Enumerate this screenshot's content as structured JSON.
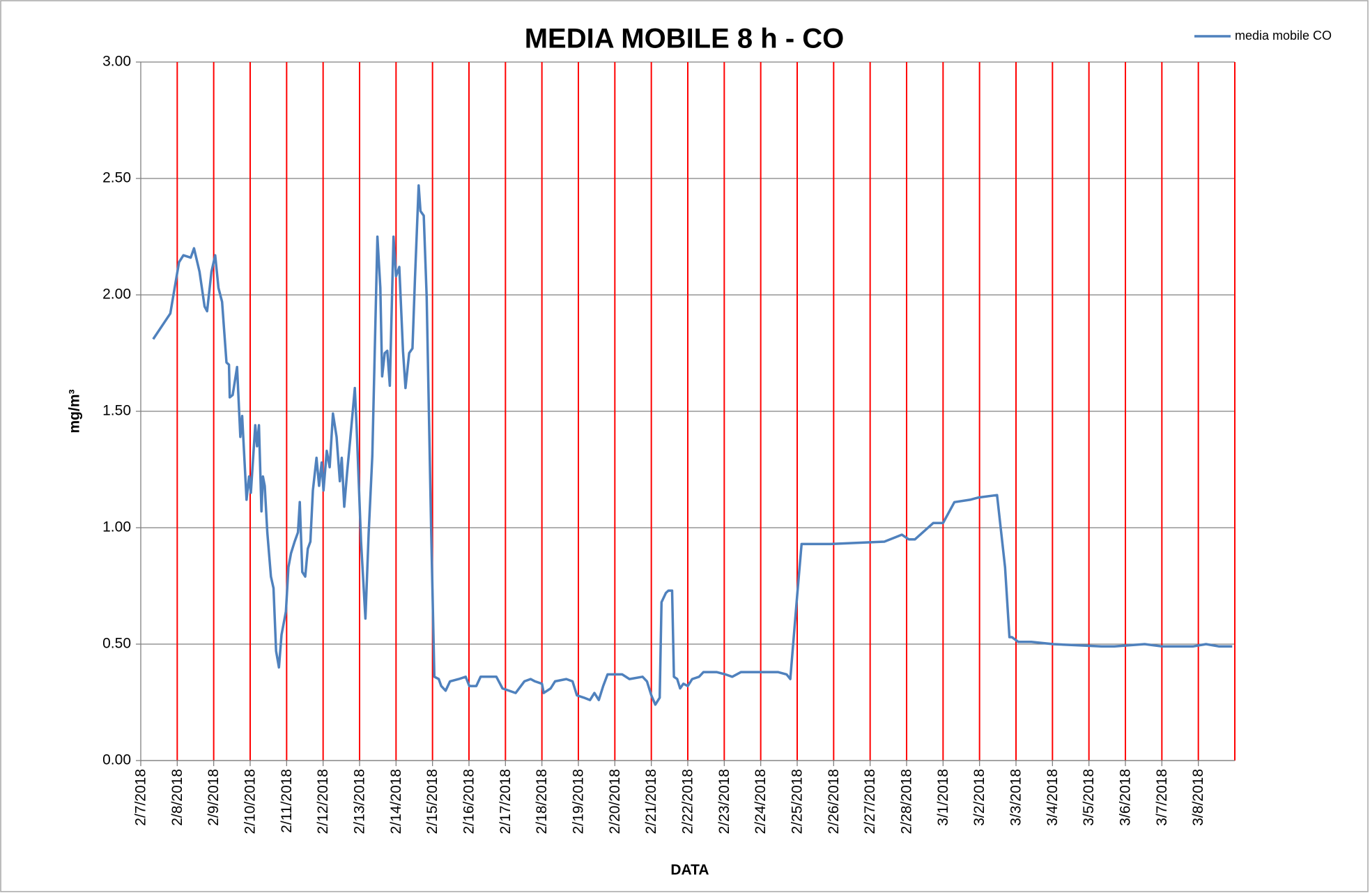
{
  "chart_data": {
    "type": "line",
    "title": "MEDIA MOBILE 8 h - CO",
    "xlabel": "DATA",
    "ylabel": "mg/m³",
    "legend": "top-right",
    "grid": true,
    "xgrid_color": "#ff0000",
    "ygrid_color": "#808080",
    "xlim": [
      0,
      30
    ],
    "xticks": [
      {
        "value": 0,
        "label": "2/7/2018"
      },
      {
        "value": 1,
        "label": "2/8/2018"
      },
      {
        "value": 2,
        "label": "2/9/2018"
      },
      {
        "value": 3,
        "label": "2/10/2018"
      },
      {
        "value": 4,
        "label": "2/11/2018"
      },
      {
        "value": 5,
        "label": "2/12/2018"
      },
      {
        "value": 6,
        "label": "2/13/2018"
      },
      {
        "value": 7,
        "label": "2/14/2018"
      },
      {
        "value": 8,
        "label": "2/15/2018"
      },
      {
        "value": 9,
        "label": "2/16/2018"
      },
      {
        "value": 10,
        "label": "2/17/2018"
      },
      {
        "value": 11,
        "label": "2/18/2018"
      },
      {
        "value": 12,
        "label": "2/19/2018"
      },
      {
        "value": 13,
        "label": "2/20/2018"
      },
      {
        "value": 14,
        "label": "2/21/2018"
      },
      {
        "value": 15,
        "label": "2/22/2018"
      },
      {
        "value": 16,
        "label": "2/23/2018"
      },
      {
        "value": 17,
        "label": "2/24/2018"
      },
      {
        "value": 18,
        "label": "2/25/2018"
      },
      {
        "value": 19,
        "label": "2/26/2018"
      },
      {
        "value": 20,
        "label": "2/27/2018"
      },
      {
        "value": 21,
        "label": "2/28/2018"
      },
      {
        "value": 22,
        "label": "3/1/2018"
      },
      {
        "value": 23,
        "label": "3/2/2018"
      },
      {
        "value": 24,
        "label": "3/3/2018"
      },
      {
        "value": 25,
        "label": "3/4/2018"
      },
      {
        "value": 26,
        "label": "3/5/2018"
      },
      {
        "value": 27,
        "label": "3/6/2018"
      },
      {
        "value": 28,
        "label": "3/7/2018"
      },
      {
        "value": 29,
        "label": "3/8/2018"
      }
    ],
    "ylim": [
      0,
      3
    ],
    "yticks": [
      {
        "value": 0,
        "label": "0.00"
      },
      {
        "value": 0.5,
        "label": "0.50"
      },
      {
        "value": 1,
        "label": "1.00"
      },
      {
        "value": 1.5,
        "label": "1.50"
      },
      {
        "value": 2,
        "label": "2.00"
      },
      {
        "value": 2.5,
        "label": "2.50"
      },
      {
        "value": 3,
        "label": "3.00"
      }
    ],
    "x": [
      0.34,
      0.81,
      1.05,
      1.17,
      1.37,
      1.46,
      1.61,
      1.75,
      1.82,
      1.94,
      2.04,
      2.13,
      2.23,
      2.35,
      2.42,
      2.44,
      2.52,
      2.64,
      2.73,
      2.78,
      2.9,
      2.97,
      3.02,
      3.14,
      3.19,
      3.24,
      3.31,
      3.35,
      3.4,
      3.47,
      3.57,
      3.64,
      3.71,
      3.79,
      3.86,
      3.98,
      4.05,
      4.12,
      4.22,
      4.31,
      4.36,
      4.43,
      4.51,
      4.58,
      4.65,
      4.72,
      4.82,
      4.89,
      4.96,
      5.01,
      5.1,
      5.18,
      5.27,
      5.37,
      5.46,
      5.51,
      5.58,
      5.66,
      5.75,
      5.87,
      5.92,
      6.04,
      6.16,
      6.25,
      6.35,
      6.49,
      6.57,
      6.62,
      6.69,
      6.76,
      6.83,
      6.93,
      7.0,
      7.09,
      7.19,
      7.26,
      7.36,
      7.45,
      7.52,
      7.62,
      7.67,
      7.76,
      7.84,
      7.96,
      8.05,
      8.17,
      8.24,
      8.36,
      8.48,
      8.72,
      8.91,
      9.01,
      9.2,
      9.32,
      9.75,
      9.92,
      10.28,
      10.52,
      10.69,
      10.81,
      11.0,
      11.05,
      11.24,
      11.36,
      11.67,
      11.84,
      11.96,
      12.15,
      12.32,
      12.44,
      12.56,
      12.68,
      12.8,
      13.2,
      13.4,
      13.76,
      13.88,
      14.0,
      14.11,
      14.23,
      14.28,
      14.4,
      14.47,
      14.57,
      14.62,
      14.71,
      14.79,
      14.88,
      15.0,
      15.12,
      15.31,
      15.43,
      15.79,
      16.03,
      16.22,
      16.46,
      17.47,
      17.71,
      17.81,
      18.0,
      18.12,
      18.91,
      20.39,
      20.71,
      20.87,
      21.06,
      21.23,
      21.73,
      22.0,
      22.31,
      22.74,
      22.98,
      23.48,
      23.7,
      23.82,
      23.89,
      24.06,
      24.42,
      25.02,
      26.34,
      26.7,
      27.53,
      28.01,
      28.85,
      29.21,
      29.57,
      29.93
    ],
    "series": [
      {
        "name": "media mobile CO",
        "color": "#4f81bd",
        "values": [
          1.81,
          1.92,
          2.14,
          2.17,
          2.16,
          2.2,
          2.1,
          1.95,
          1.93,
          2.1,
          2.17,
          2.03,
          1.97,
          1.71,
          1.7,
          1.56,
          1.57,
          1.69,
          1.39,
          1.48,
          1.12,
          1.22,
          1.15,
          1.44,
          1.35,
          1.44,
          1.07,
          1.22,
          1.18,
          0.98,
          0.79,
          0.74,
          0.47,
          0.4,
          0.54,
          0.64,
          0.83,
          0.89,
          0.94,
          0.98,
          1.11,
          0.81,
          0.79,
          0.91,
          0.94,
          1.16,
          1.3,
          1.18,
          1.28,
          1.16,
          1.33,
          1.26,
          1.49,
          1.39,
          1.2,
          1.3,
          1.09,
          1.24,
          1.39,
          1.6,
          1.43,
          0.94,
          0.61,
          0.98,
          1.31,
          2.25,
          2.03,
          1.65,
          1.75,
          1.76,
          1.61,
          2.25,
          2.08,
          2.12,
          1.76,
          1.6,
          1.75,
          1.77,
          2.07,
          2.47,
          2.36,
          2.34,
          1.99,
          1.01,
          0.36,
          0.35,
          0.32,
          0.3,
          0.34,
          0.35,
          0.36,
          0.32,
          0.32,
          0.36,
          0.36,
          0.31,
          0.29,
          0.34,
          0.35,
          0.34,
          0.33,
          0.29,
          0.31,
          0.34,
          0.35,
          0.34,
          0.28,
          0.27,
          0.26,
          0.29,
          0.26,
          0.32,
          0.37,
          0.37,
          0.35,
          0.36,
          0.34,
          0.28,
          0.24,
          0.27,
          0.68,
          0.72,
          0.73,
          0.73,
          0.36,
          0.35,
          0.31,
          0.33,
          0.32,
          0.35,
          0.36,
          0.38,
          0.38,
          0.37,
          0.36,
          0.38,
          0.38,
          0.37,
          0.35,
          0.71,
          0.93,
          0.93,
          0.94,
          0.96,
          0.97,
          0.95,
          0.95,
          1.02,
          1.02,
          1.11,
          1.12,
          1.13,
          1.14,
          0.83,
          0.53,
          0.53,
          0.51,
          0.51,
          0.5,
          0.49,
          0.49,
          0.5,
          0.49,
          0.49,
          0.5,
          0.49,
          0.49
        ]
      }
    ]
  }
}
